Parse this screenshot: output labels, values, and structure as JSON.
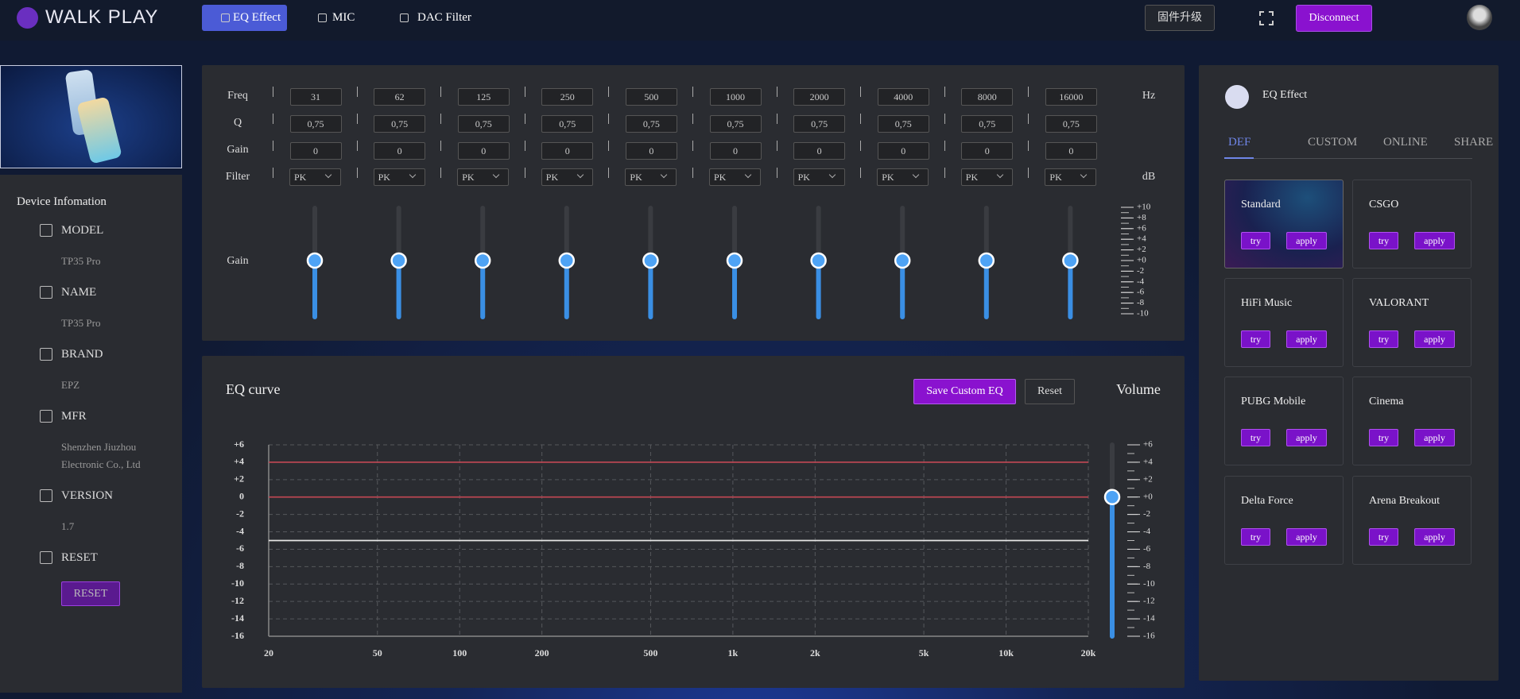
{
  "header": {
    "brand": "WALK PLAY",
    "nav": [
      "EQ Effect",
      "MIC",
      "DAC Filter"
    ],
    "firmware": "固件升级",
    "disconnect": "Disconnect"
  },
  "device": {
    "title": "Device Infomation",
    "items": [
      {
        "label": "MODEL",
        "value": "TP35 Pro"
      },
      {
        "label": "NAME",
        "value": "TP35 Pro"
      },
      {
        "label": "BRAND",
        "value": "EPZ"
      },
      {
        "label": "MFR",
        "value": "Shenzhen Jiuzhou Electronic Co., Ltd"
      },
      {
        "label": "VERSION",
        "value": "1.7"
      },
      {
        "label": "RESET"
      }
    ],
    "reset_button": "RESET"
  },
  "eq_params": {
    "row_labels": {
      "freq": "Freq",
      "q": "Q",
      "gain": "Gain",
      "filter": "Filter"
    },
    "units": {
      "freq": "Hz",
      "filter": "dB"
    },
    "bands": [
      {
        "freq": 31,
        "q": "0,75",
        "gain": 0,
        "filter": "PK"
      },
      {
        "freq": 62,
        "q": "0,75",
        "gain": 0,
        "filter": "PK"
      },
      {
        "freq": 125,
        "q": "0,75",
        "gain": 0,
        "filter": "PK"
      },
      {
        "freq": 250,
        "q": "0,75",
        "gain": 0,
        "filter": "PK"
      },
      {
        "freq": 500,
        "q": "0,75",
        "gain": 0,
        "filter": "PK"
      },
      {
        "freq": 1000,
        "q": "0,75",
        "gain": 0,
        "filter": "PK"
      },
      {
        "freq": 2000,
        "q": "0,75",
        "gain": 0,
        "filter": "PK"
      },
      {
        "freq": 4000,
        "q": "0,75",
        "gain": 0,
        "filter": "PK"
      },
      {
        "freq": 8000,
        "q": "0,75",
        "gain": 0,
        "filter": "PK"
      },
      {
        "freq": 16000,
        "q": "0,75",
        "gain": 0,
        "filter": "PK"
      }
    ],
    "slider_label": "Gain",
    "gain_scale": [
      {
        "value": 10,
        "label": "+10"
      },
      {
        "value": 8,
        "label": "+8"
      },
      {
        "value": 6,
        "label": "+6"
      },
      {
        "value": 4,
        "label": "+4"
      },
      {
        "value": 2,
        "label": "+2"
      },
      {
        "value": 0,
        "label": "+0"
      },
      -2,
      -4,
      -6,
      -8,
      -10
    ]
  },
  "eq_curve": {
    "title": "EQ curve",
    "save": "Save Custom EQ",
    "reset": "Reset",
    "log_x": true,
    "grid": true,
    "xlim": [
      20,
      20000
    ],
    "xticks": [
      20,
      50,
      100,
      200,
      500,
      {
        "value": 1000,
        "label": "1k"
      },
      {
        "value": 2000,
        "label": "2k"
      },
      {
        "value": 5000,
        "label": "5k"
      },
      {
        "value": 10000,
        "label": "10k"
      },
      {
        "value": 20000,
        "label": "20k"
      }
    ],
    "ylim": [
      -16,
      6
    ],
    "yticks": [
      {
        "value": 6,
        "label": "+6"
      },
      {
        "value": 4,
        "label": "+4"
      },
      {
        "value": 2,
        "label": "+2"
      },
      0,
      -2,
      -4,
      -6,
      -8,
      -10,
      -12,
      -14,
      -16
    ],
    "lines": [
      {
        "value": 4,
        "color": "#b84652"
      },
      {
        "value": 0,
        "color": "#b84652"
      },
      {
        "value": -5,
        "color": "#e6e6e6"
      }
    ],
    "volume": {
      "label": "Volume",
      "value": 0,
      "scale": [
        {
          "value": 6,
          "label": "+6"
        },
        {
          "value": 4,
          "label": "+4"
        },
        {
          "value": 2,
          "label": "+2"
        },
        {
          "value": 0,
          "label": "+0"
        },
        -2,
        -4,
        -6,
        -8,
        -10,
        -12,
        -14,
        -16
      ]
    }
  },
  "presets": {
    "title": "EQ Effect",
    "tabs": [
      "DEF",
      "CUSTOM",
      "ONLINE",
      "SHARE"
    ],
    "cards": [
      "Standard",
      "CSGO",
      "HiFi Music",
      "VALORANT",
      "PUBG Mobile",
      "Cinema",
      "Delta Force",
      "Arena Breakout"
    ],
    "try": "try",
    "apply": "apply"
  }
}
